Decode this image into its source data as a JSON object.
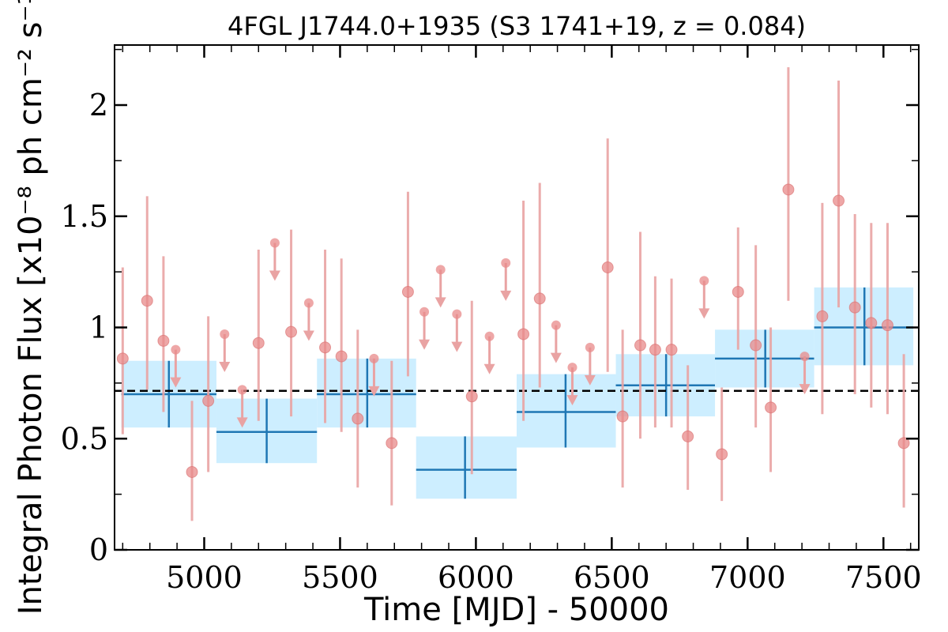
{
  "chart_data": {
    "type": "scatter",
    "title": "4FGL J1744.0+1935 (S3 1741+19, z = 0.084)",
    "xlabel": "Time [MJD] - 50000",
    "ylabel": "Integral Photon Flux [x10⁻⁸ ph cm⁻² s⁻¹]",
    "xlim": [
      4670,
      7630
    ],
    "ylim": [
      0,
      2.27
    ],
    "x_ticks": [
      5000,
      5500,
      6000,
      6500,
      7000,
      7500
    ],
    "x_tick_labels": [
      "5000",
      "5500",
      "6000",
      "6500",
      "7000",
      "7500"
    ],
    "y_ticks": [
      0,
      0.5,
      1,
      1.5,
      2
    ],
    "y_tick_labels": [
      "0",
      "0.5",
      "1",
      "1.5",
      "2"
    ],
    "grid": false,
    "colors": {
      "points": "#e88a8a",
      "errorbars": "#e9a3a3",
      "bins": "#1f77b4",
      "bin_fill": "#cdeeff",
      "mean_line": "#000000"
    },
    "mean_flux": 0.715,
    "series": [
      {
        "kind": "detections",
        "points": [
          {
            "x": 4700,
            "y": 0.86,
            "lo": 0.52,
            "hi": 1.27
          },
          {
            "x": 4790,
            "y": 1.12,
            "lo": 0.72,
            "hi": 1.59
          },
          {
            "x": 4850,
            "y": 0.94,
            "lo": 0.62,
            "hi": 1.32
          },
          {
            "x": 4955,
            "y": 0.35,
            "lo": 0.13,
            "hi": 0.67
          },
          {
            "x": 5015,
            "y": 0.67,
            "lo": 0.35,
            "hi": 1.05
          },
          {
            "x": 5200,
            "y": 0.93,
            "lo": 0.58,
            "hi": 1.35
          },
          {
            "x": 5320,
            "y": 0.98,
            "lo": 0.6,
            "hi": 1.44
          },
          {
            "x": 5445,
            "y": 0.91,
            "lo": 0.57,
            "hi": 1.35
          },
          {
            "x": 5505,
            "y": 0.87,
            "lo": 0.53,
            "hi": 1.31
          },
          {
            "x": 5565,
            "y": 0.59,
            "lo": 0.28,
            "hi": 0.99
          },
          {
            "x": 5690,
            "y": 0.48,
            "lo": 0.2,
            "hi": 0.85
          },
          {
            "x": 5750,
            "y": 1.16,
            "lo": 0.78,
            "hi": 1.61
          },
          {
            "x": 5985,
            "y": 0.69,
            "lo": 0.34,
            "hi": 1.12
          },
          {
            "x": 6175,
            "y": 0.97,
            "lo": 0.58,
            "hi": 1.57
          },
          {
            "x": 6235,
            "y": 1.13,
            "lo": 0.73,
            "hi": 1.65
          },
          {
            "x": 6485,
            "y": 1.27,
            "lo": 0.8,
            "hi": 1.85
          },
          {
            "x": 6540,
            "y": 0.6,
            "lo": 0.28,
            "hi": 0.99
          },
          {
            "x": 6605,
            "y": 0.92,
            "lo": 0.5,
            "hi": 1.43
          },
          {
            "x": 6660,
            "y": 0.9,
            "lo": 0.55,
            "hi": 1.23
          },
          {
            "x": 6720,
            "y": 0.9,
            "lo": 0.55,
            "hi": 1.22
          },
          {
            "x": 6780,
            "y": 0.51,
            "lo": 0.27,
            "hi": 0.83
          },
          {
            "x": 6905,
            "y": 0.43,
            "lo": 0.22,
            "hi": 0.73
          },
          {
            "x": 6965,
            "y": 1.16,
            "lo": 0.9,
            "hi": 1.45
          },
          {
            "x": 7030,
            "y": 0.92,
            "lo": 0.55,
            "hi": 1.37
          },
          {
            "x": 7085,
            "y": 0.64,
            "lo": 0.35,
            "hi": 1.0
          },
          {
            "x": 7150,
            "y": 1.62,
            "lo": 1.12,
            "hi": 2.17
          },
          {
            "x": 7275,
            "y": 1.05,
            "lo": 0.61,
            "hi": 1.56
          },
          {
            "x": 7335,
            "y": 1.57,
            "lo": 1.09,
            "hi": 2.11
          },
          {
            "x": 7395,
            "y": 1.09,
            "lo": 0.7,
            "hi": 1.51
          },
          {
            "x": 7455,
            "y": 1.02,
            "lo": 0.64,
            "hi": 1.47
          },
          {
            "x": 7515,
            "y": 1.01,
            "lo": 0.61,
            "hi": 1.47
          },
          {
            "x": 7575,
            "y": 0.48,
            "lo": 0.19,
            "hi": 0.88
          }
        ]
      },
      {
        "kind": "upper_limits",
        "points": [
          {
            "x": 4895,
            "y": 0.9
          },
          {
            "x": 5075,
            "y": 0.97
          },
          {
            "x": 5140,
            "y": 0.72
          },
          {
            "x": 5260,
            "y": 1.38
          },
          {
            "x": 5385,
            "y": 1.11
          },
          {
            "x": 5625,
            "y": 0.86
          },
          {
            "x": 5810,
            "y": 1.07
          },
          {
            "x": 5870,
            "y": 1.26
          },
          {
            "x": 5930,
            "y": 1.06
          },
          {
            "x": 6050,
            "y": 0.96
          },
          {
            "x": 6110,
            "y": 1.29
          },
          {
            "x": 6295,
            "y": 1.01
          },
          {
            "x": 6355,
            "y": 0.82
          },
          {
            "x": 6420,
            "y": 0.91
          },
          {
            "x": 6840,
            "y": 1.21
          },
          {
            "x": 7210,
            "y": 0.87
          }
        ]
      },
      {
        "kind": "bins",
        "points": [
          {
            "x0": 4695,
            "x1": 5045,
            "xc": 4870,
            "y": 0.7,
            "lo": 0.55,
            "hi": 0.85
          },
          {
            "x0": 5045,
            "x1": 5415,
            "xc": 5230,
            "y": 0.53,
            "lo": 0.39,
            "hi": 0.68
          },
          {
            "x0": 5415,
            "x1": 5780,
            "xc": 5600,
            "y": 0.7,
            "lo": 0.55,
            "hi": 0.86
          },
          {
            "x0": 5780,
            "x1": 6150,
            "xc": 5960,
            "y": 0.36,
            "lo": 0.23,
            "hi": 0.51
          },
          {
            "x0": 6150,
            "x1": 6515,
            "xc": 6330,
            "y": 0.62,
            "lo": 0.46,
            "hi": 0.79
          },
          {
            "x0": 6515,
            "x1": 6880,
            "xc": 6700,
            "y": 0.74,
            "lo": 0.6,
            "hi": 0.88
          },
          {
            "x0": 6880,
            "x1": 7245,
            "xc": 7065,
            "y": 0.86,
            "lo": 0.73,
            "hi": 0.99
          },
          {
            "x0": 7245,
            "x1": 7610,
            "xc": 7430,
            "y": 1.0,
            "lo": 0.83,
            "hi": 1.18
          }
        ]
      }
    ]
  }
}
